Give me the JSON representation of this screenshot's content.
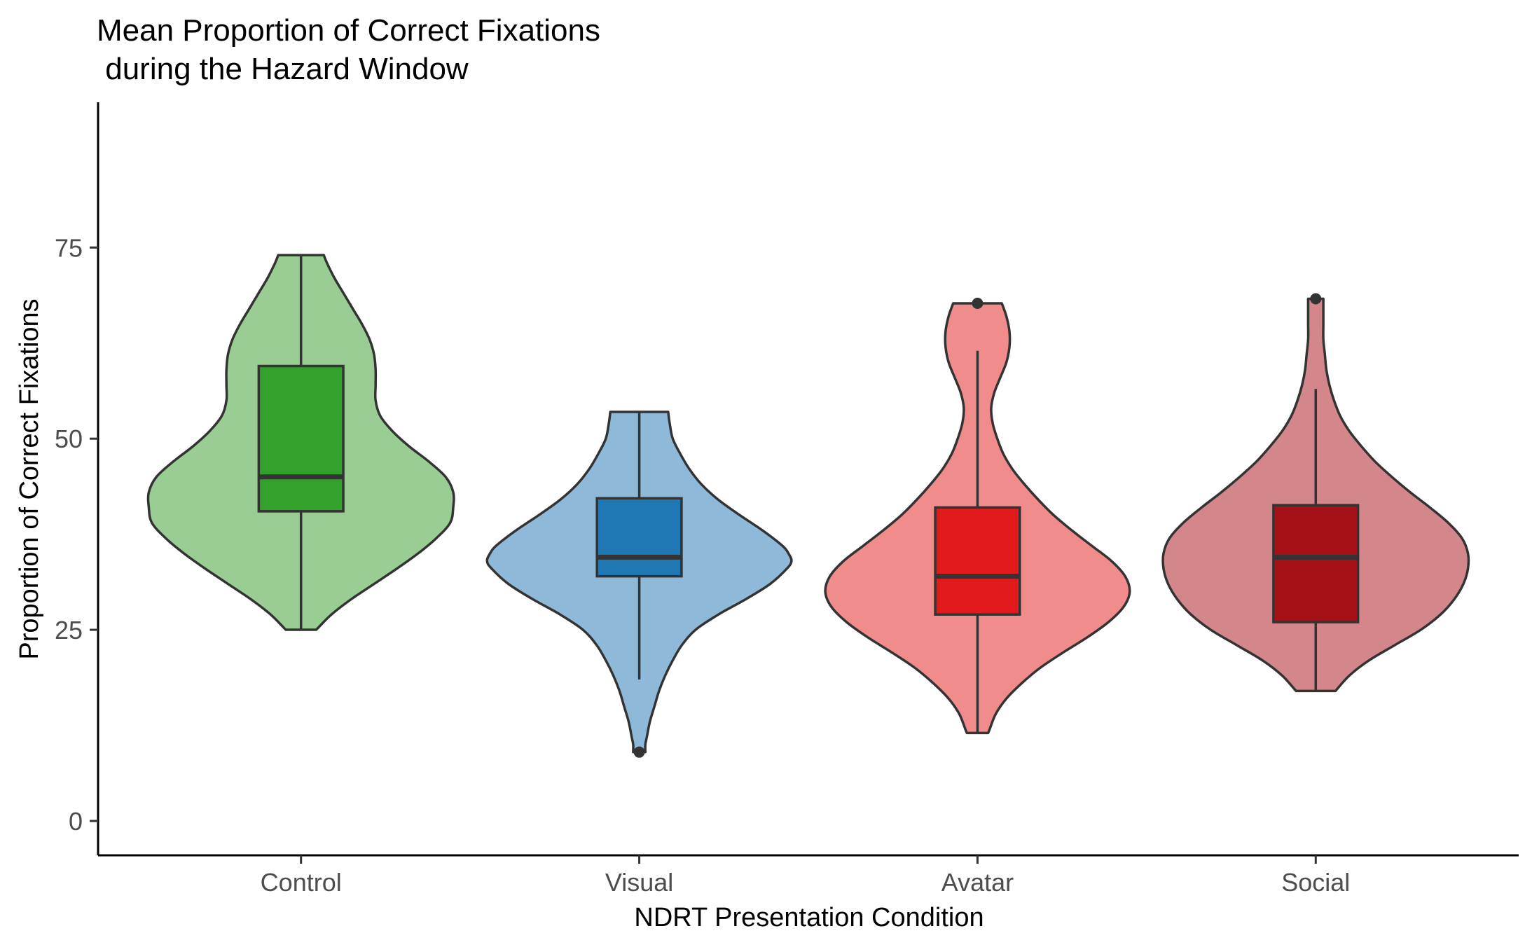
{
  "chart_data": {
    "type": "violin",
    "title_line1": "Mean Proportion of Correct Fixations",
    "title_line2": " during the Hazard Window",
    "xlabel": "NDRT Presentation Condition",
    "ylabel": "Proportion of Correct Fixations",
    "categories": [
      "Control",
      "Visual",
      "Avatar",
      "Social"
    ],
    "ylim": [
      -4.5,
      94
    ],
    "yticks": [
      0,
      25,
      50,
      75
    ],
    "ytick_labels": [
      "0",
      "25",
      "50",
      "75"
    ],
    "grid": false,
    "legend": "none",
    "groups": [
      {
        "name": "Control",
        "violin_color": "#9acd93",
        "box_color": "#33a02c",
        "box": {
          "min": 25.0,
          "q1": 40.5,
          "median": 45.0,
          "q3": 59.5,
          "max": 74.0
        },
        "outliers": [],
        "density": [
          [
            25.0,
            0.1
          ],
          [
            27.0,
            0.2
          ],
          [
            29.0,
            0.33
          ],
          [
            31.0,
            0.48
          ],
          [
            33.0,
            0.63
          ],
          [
            35.0,
            0.77
          ],
          [
            37.0,
            0.89
          ],
          [
            39.0,
            0.98
          ],
          [
            41.0,
            1.0
          ],
          [
            43.0,
            1.0
          ],
          [
            45.0,
            0.95
          ],
          [
            47.0,
            0.84
          ],
          [
            49.0,
            0.71
          ],
          [
            51.0,
            0.6
          ],
          [
            53.0,
            0.52
          ],
          [
            55.0,
            0.49
          ],
          [
            57.0,
            0.49
          ],
          [
            59.0,
            0.49
          ],
          [
            61.0,
            0.48
          ],
          [
            63.0,
            0.45
          ],
          [
            65.0,
            0.4
          ],
          [
            67.0,
            0.34
          ],
          [
            69.0,
            0.28
          ],
          [
            71.0,
            0.22
          ],
          [
            73.0,
            0.17
          ],
          [
            74.0,
            0.15
          ]
        ]
      },
      {
        "name": "Visual",
        "violin_color": "#8fb9d9",
        "box_color": "#1f78b4",
        "box": {
          "min": 18.5,
          "q1": 32.0,
          "median": 34.5,
          "q3": 42.2,
          "max": 53.5
        },
        "outliers": [
          9.0
        ],
        "density": [
          [
            9.0,
            0.04
          ],
          [
            10.0,
            0.04
          ],
          [
            11.0,
            0.05
          ],
          [
            13.0,
            0.07
          ],
          [
            15.0,
            0.1
          ],
          [
            17.0,
            0.13
          ],
          [
            19.0,
            0.17
          ],
          [
            21.0,
            0.22
          ],
          [
            23.0,
            0.28
          ],
          [
            25.0,
            0.37
          ],
          [
            27.0,
            0.52
          ],
          [
            29.0,
            0.7
          ],
          [
            31.0,
            0.86
          ],
          [
            33.0,
            0.97
          ],
          [
            34.0,
            1.0
          ],
          [
            35.0,
            0.98
          ],
          [
            36.0,
            0.94
          ],
          [
            38.0,
            0.81
          ],
          [
            40.0,
            0.66
          ],
          [
            42.0,
            0.52
          ],
          [
            44.0,
            0.41
          ],
          [
            46.0,
            0.33
          ],
          [
            48.0,
            0.27
          ],
          [
            50.0,
            0.22
          ],
          [
            52.0,
            0.2
          ],
          [
            53.5,
            0.19
          ]
        ]
      },
      {
        "name": "Avatar",
        "violin_color": "#f08c8c",
        "box_color": "#e31a1c",
        "box": {
          "min": 11.5,
          "q1": 27.0,
          "median": 32.0,
          "q3": 41.0,
          "max": 61.5
        },
        "outliers": [
          67.7
        ],
        "density": [
          [
            11.5,
            0.07
          ],
          [
            12.0,
            0.08
          ],
          [
            14.0,
            0.12
          ],
          [
            16.0,
            0.19
          ],
          [
            18.0,
            0.29
          ],
          [
            20.0,
            0.41
          ],
          [
            22.0,
            0.56
          ],
          [
            24.0,
            0.72
          ],
          [
            26.0,
            0.86
          ],
          [
            28.0,
            0.96
          ],
          [
            30.0,
            1.0
          ],
          [
            32.0,
            0.97
          ],
          [
            34.0,
            0.88
          ],
          [
            36.0,
            0.75
          ],
          [
            38.0,
            0.62
          ],
          [
            40.0,
            0.5
          ],
          [
            42.0,
            0.4
          ],
          [
            44.0,
            0.31
          ],
          [
            46.0,
            0.23
          ],
          [
            48.0,
            0.17
          ],
          [
            50.0,
            0.13
          ],
          [
            52.0,
            0.1
          ],
          [
            54.0,
            0.09
          ],
          [
            56.0,
            0.11
          ],
          [
            58.0,
            0.15
          ],
          [
            60.0,
            0.19
          ],
          [
            62.0,
            0.21
          ],
          [
            64.0,
            0.21
          ],
          [
            66.0,
            0.19
          ],
          [
            67.7,
            0.16
          ]
        ]
      },
      {
        "name": "Social",
        "violin_color": "#d4878a",
        "box_color": "#a51117",
        "box": {
          "min": 17.0,
          "q1": 26.0,
          "median": 34.5,
          "q3": 41.3,
          "max": 56.5
        },
        "outliers": [
          68.3
        ],
        "density": [
          [
            17.0,
            0.13
          ],
          [
            19.0,
            0.22
          ],
          [
            21.0,
            0.35
          ],
          [
            23.0,
            0.52
          ],
          [
            25.0,
            0.69
          ],
          [
            27.0,
            0.82
          ],
          [
            29.0,
            0.91
          ],
          [
            31.0,
            0.97
          ],
          [
            33.0,
            1.0
          ],
          [
            35.0,
            1.0
          ],
          [
            37.0,
            0.96
          ],
          [
            39.0,
            0.87
          ],
          [
            41.0,
            0.75
          ],
          [
            43.0,
            0.62
          ],
          [
            45.0,
            0.5
          ],
          [
            47.0,
            0.39
          ],
          [
            49.0,
            0.3
          ],
          [
            51.0,
            0.22
          ],
          [
            53.0,
            0.16
          ],
          [
            55.0,
            0.12
          ],
          [
            57.0,
            0.09
          ],
          [
            59.0,
            0.07
          ],
          [
            61.0,
            0.06
          ],
          [
            63.0,
            0.05
          ],
          [
            65.0,
            0.05
          ],
          [
            67.0,
            0.05
          ],
          [
            68.3,
            0.05
          ]
        ]
      }
    ]
  }
}
